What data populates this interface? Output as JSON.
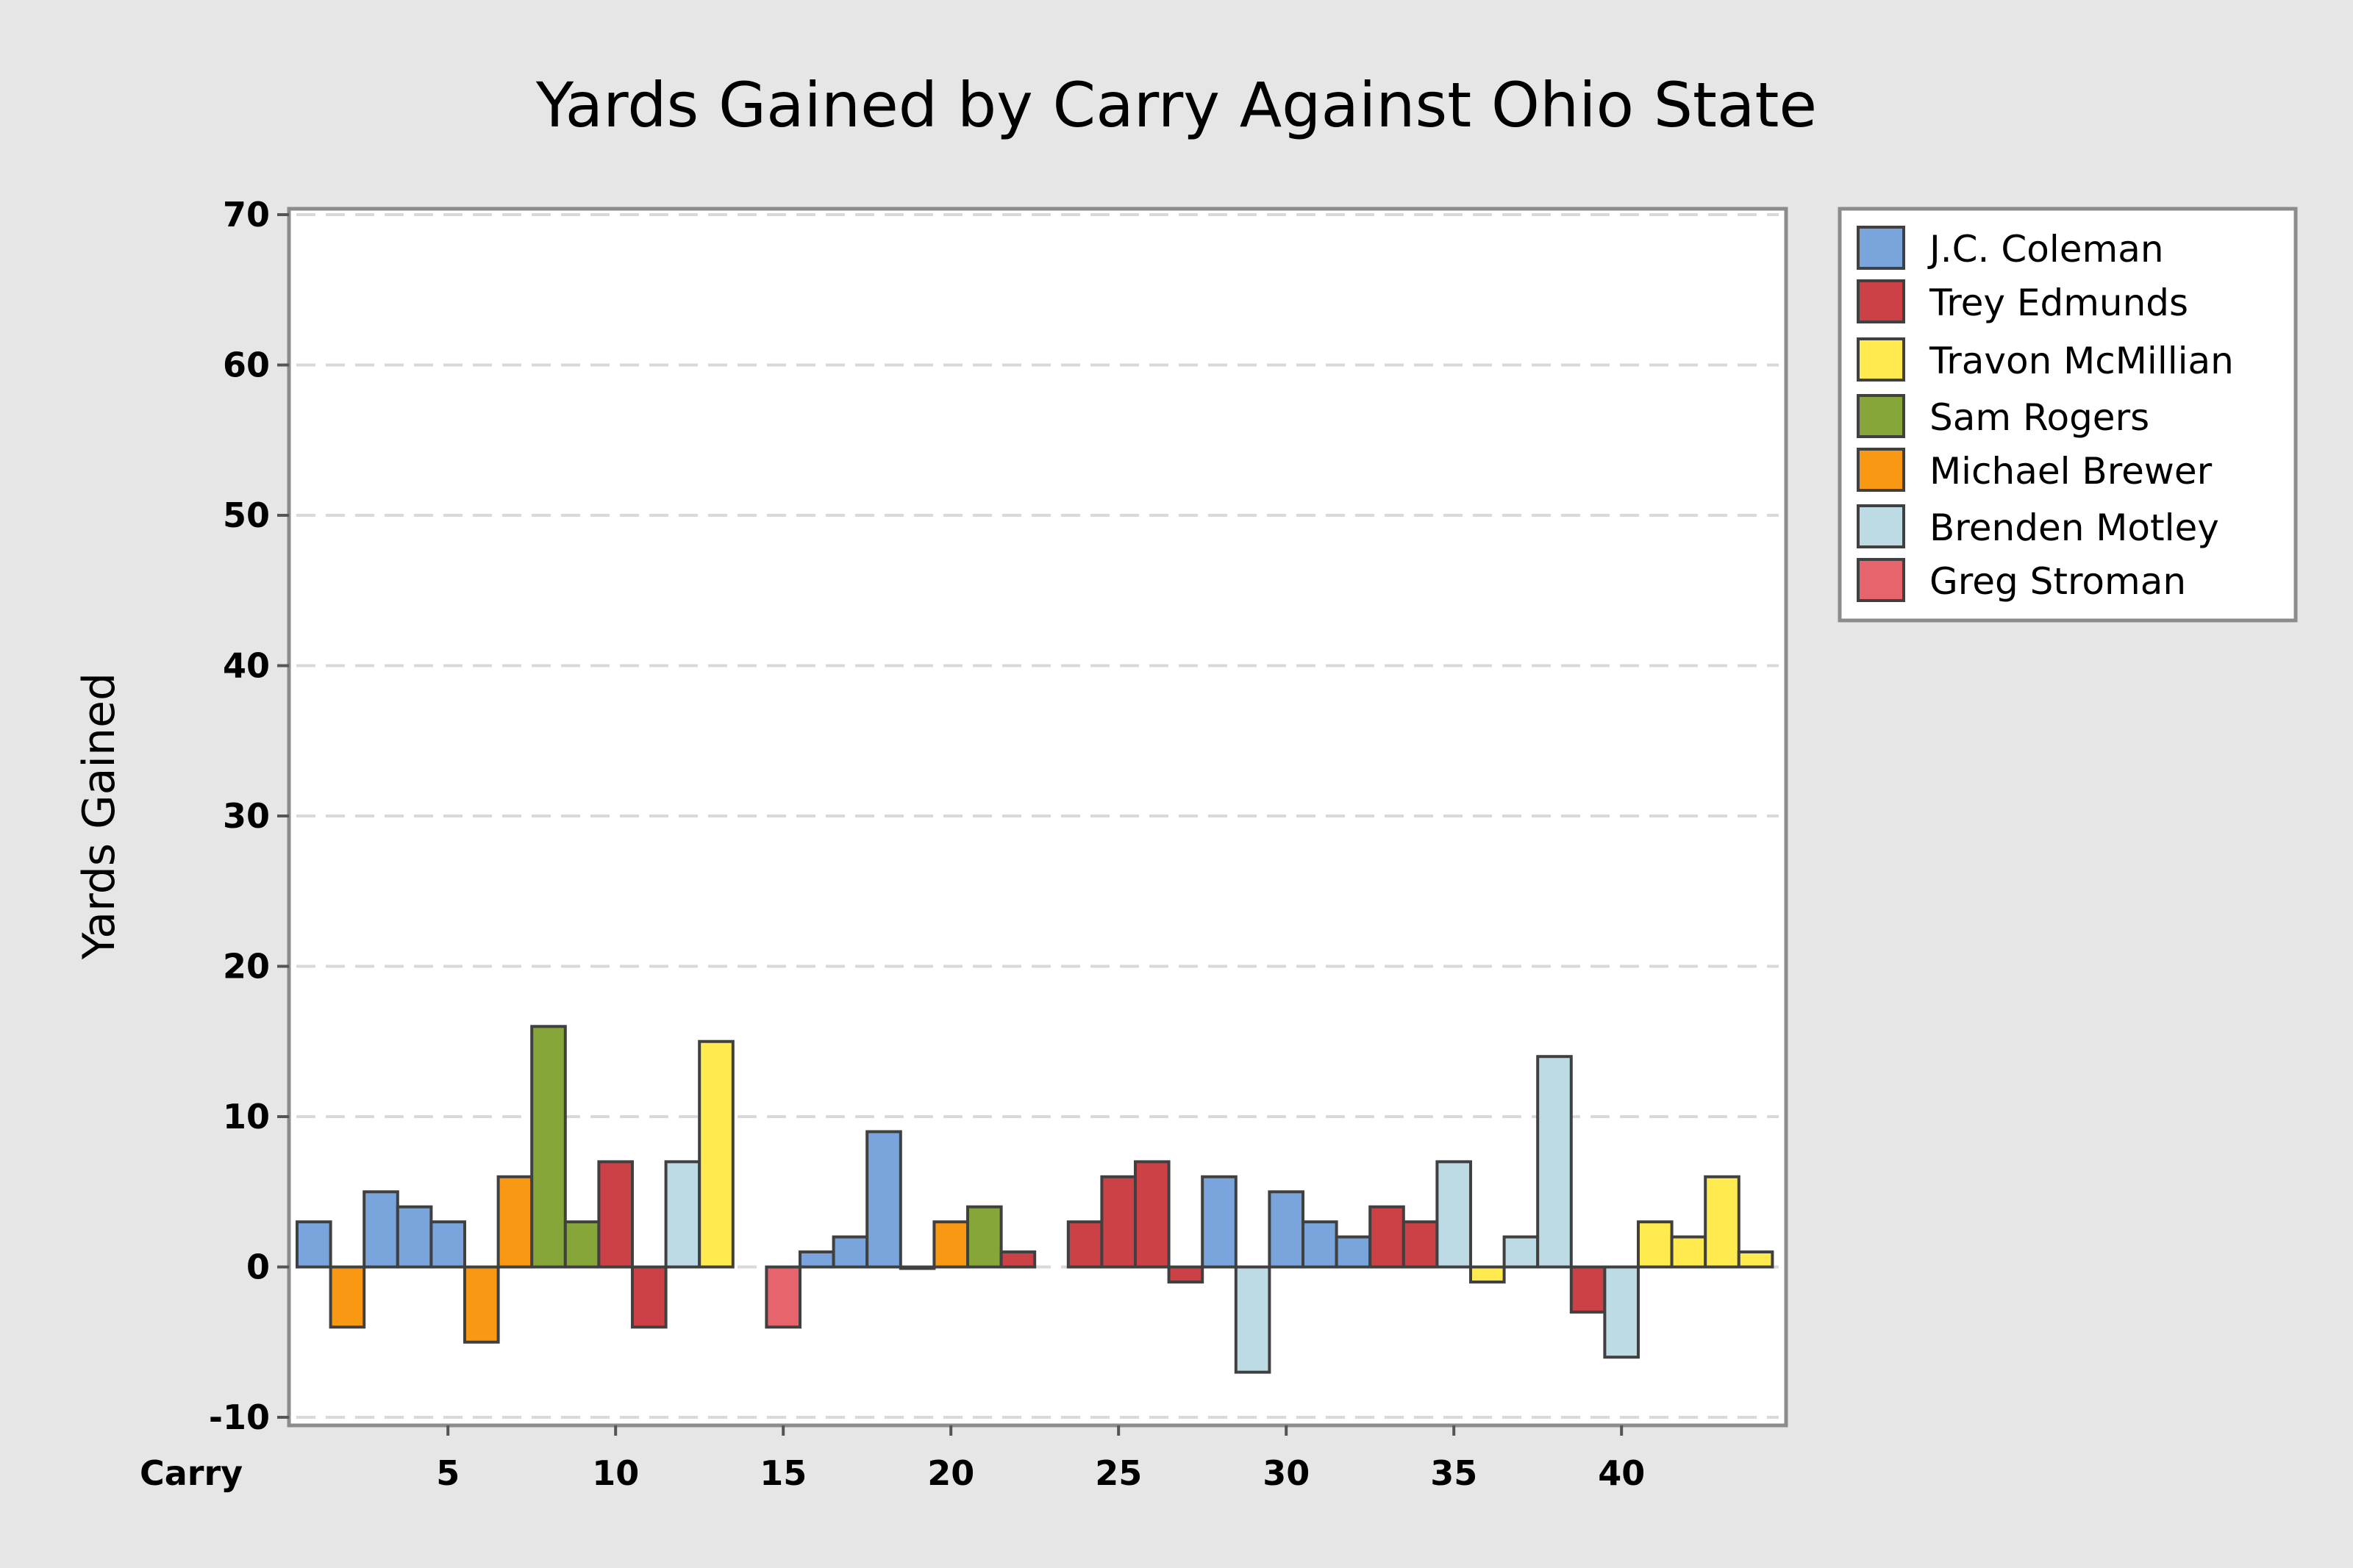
{
  "chart_data": {
    "type": "bar",
    "title": "Yards Gained by Carry Against Ohio State",
    "xlabel": "Carry",
    "ylabel": "Yards Gained",
    "xlim": [
      0.5,
      44.5
    ],
    "ylim": [
      -10,
      70
    ],
    "yticks": [
      -10,
      0,
      10,
      20,
      30,
      40,
      50,
      60,
      70
    ],
    "xticks": [
      5,
      10,
      15,
      20,
      25,
      30,
      35,
      40
    ],
    "grid": true,
    "legend_position": "right",
    "series": [
      {
        "name": "J.C. Coleman",
        "color": "#7aa5dc"
      },
      {
        "name": "Trey Edmunds",
        "color": "#cc4146"
      },
      {
        "name": "Travon McMillian",
        "color": "#ffeb4f"
      },
      {
        "name": "Sam Rogers",
        "color": "#87a639"
      },
      {
        "name": "Michael Brewer",
        "color": "#f99813"
      },
      {
        "name": "Brenden Motley",
        "color": "#bcdbe5"
      },
      {
        "name": "Greg Stroman",
        "color": "#e6646b"
      }
    ],
    "bars": [
      {
        "carry": 1,
        "yards": 3,
        "player": "J.C. Coleman"
      },
      {
        "carry": 2,
        "yards": -4,
        "player": "Michael Brewer"
      },
      {
        "carry": 3,
        "yards": 5,
        "player": "J.C. Coleman"
      },
      {
        "carry": 4,
        "yards": 4,
        "player": "J.C. Coleman"
      },
      {
        "carry": 5,
        "yards": 3,
        "player": "J.C. Coleman"
      },
      {
        "carry": 6,
        "yards": -5,
        "player": "Michael Brewer"
      },
      {
        "carry": 7,
        "yards": 6,
        "player": "Michael Brewer"
      },
      {
        "carry": 8,
        "yards": 16,
        "player": "Sam Rogers"
      },
      {
        "carry": 9,
        "yards": 3,
        "player": "Sam Rogers"
      },
      {
        "carry": 10,
        "yards": 7,
        "player": "Trey Edmunds"
      },
      {
        "carry": 11,
        "yards": -4,
        "player": "Trey Edmunds"
      },
      {
        "carry": 12,
        "yards": 7,
        "player": "Brenden Motley"
      },
      {
        "carry": 13,
        "yards": 15,
        "player": "Travon McMillian"
      },
      {
        "carry": 15,
        "yards": -4,
        "player": "Greg Stroman"
      },
      {
        "carry": 16,
        "yards": 1,
        "player": "J.C. Coleman"
      },
      {
        "carry": 17,
        "yards": 2,
        "player": "J.C. Coleman"
      },
      {
        "carry": 18,
        "yards": 9,
        "player": "J.C. Coleman"
      },
      {
        "carry": 19,
        "yards": 0,
        "player": "Michael Brewer"
      },
      {
        "carry": 20,
        "yards": 3,
        "player": "Michael Brewer"
      },
      {
        "carry": 21,
        "yards": 4,
        "player": "Sam Rogers"
      },
      {
        "carry": 22,
        "yards": 1,
        "player": "Trey Edmunds"
      },
      {
        "carry": 24,
        "yards": 3,
        "player": "Trey Edmunds"
      },
      {
        "carry": 25,
        "yards": 6,
        "player": "Trey Edmunds"
      },
      {
        "carry": 26,
        "yards": 7,
        "player": "Trey Edmunds"
      },
      {
        "carry": 27,
        "yards": -1,
        "player": "Trey Edmunds"
      },
      {
        "carry": 28,
        "yards": 6,
        "player": "J.C. Coleman"
      },
      {
        "carry": 29,
        "yards": -7,
        "player": "Brenden Motley"
      },
      {
        "carry": 30,
        "yards": 5,
        "player": "J.C. Coleman"
      },
      {
        "carry": 31,
        "yards": 3,
        "player": "J.C. Coleman"
      },
      {
        "carry": 32,
        "yards": 2,
        "player": "J.C. Coleman"
      },
      {
        "carry": 33,
        "yards": 4,
        "player": "Trey Edmunds"
      },
      {
        "carry": 34,
        "yards": 3,
        "player": "Trey Edmunds"
      },
      {
        "carry": 35,
        "yards": 7,
        "player": "Brenden Motley"
      },
      {
        "carry": 36,
        "yards": -1,
        "player": "Travon McMillian"
      },
      {
        "carry": 37,
        "yards": 2,
        "player": "Brenden Motley"
      },
      {
        "carry": 38,
        "yards": 14,
        "player": "Brenden Motley"
      },
      {
        "carry": 39,
        "yards": -3,
        "player": "Trey Edmunds"
      },
      {
        "carry": 40,
        "yards": -6,
        "player": "Brenden Motley"
      },
      {
        "carry": 41,
        "yards": 3,
        "player": "Travon McMillian"
      },
      {
        "carry": 42,
        "yards": 2,
        "player": "Travon McMillian"
      },
      {
        "carry": 43,
        "yards": 6,
        "player": "Travon McMillian"
      },
      {
        "carry": 44,
        "yards": 1,
        "player": "Travon McMillian"
      }
    ]
  }
}
